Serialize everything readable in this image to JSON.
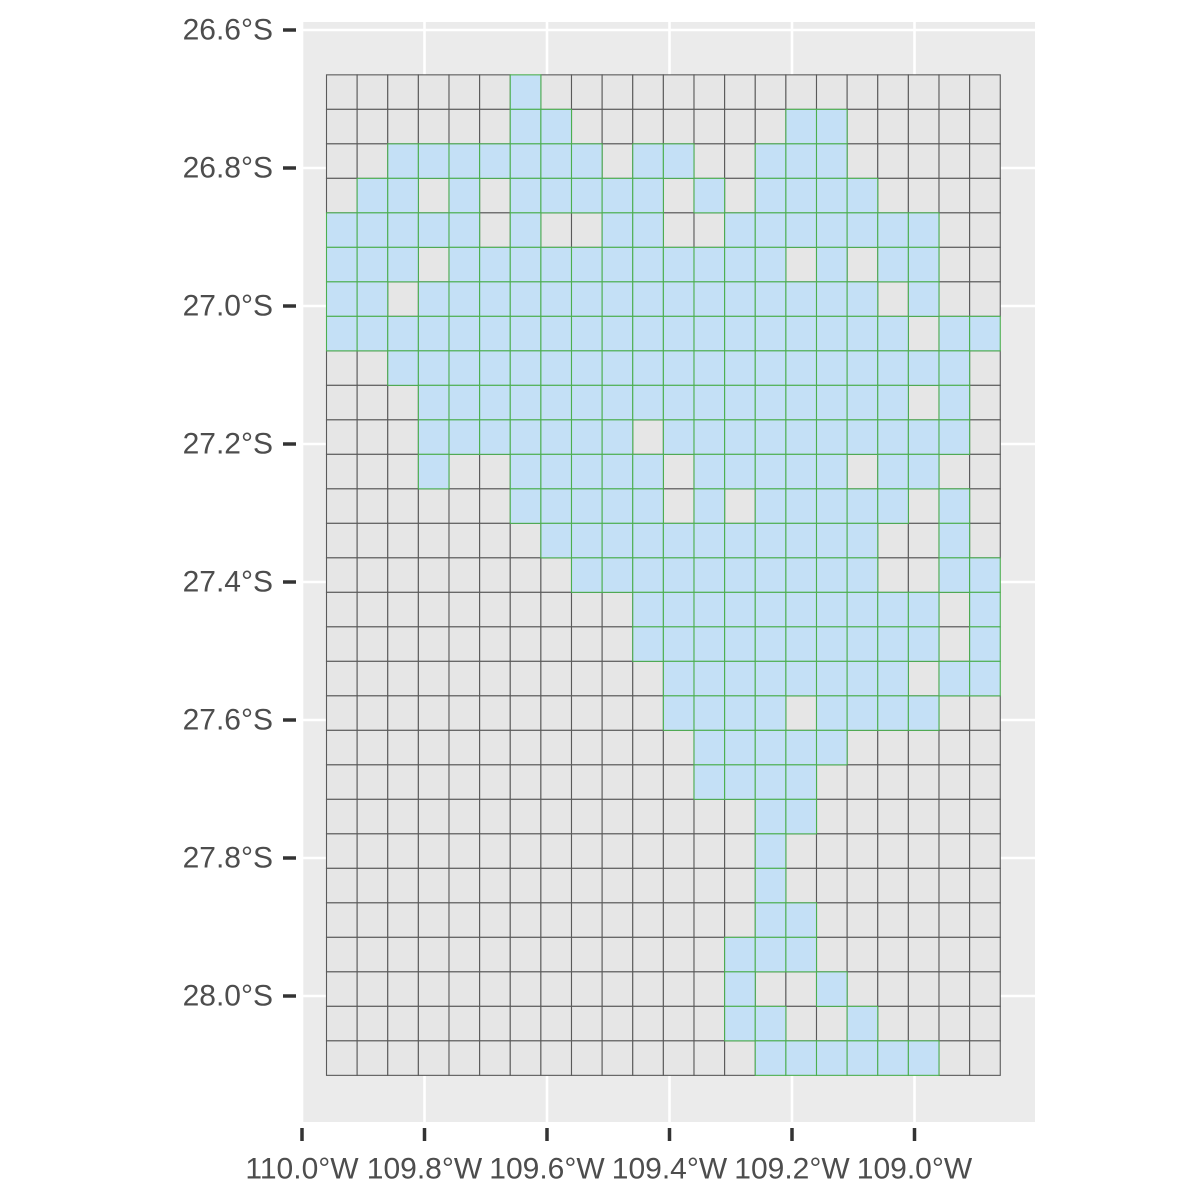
{
  "map": {
    "panel_color": "#ebebeb",
    "major_grid_color": "#ffffff",
    "cell_outline_color": "#5a5a5a",
    "cell_fill_color": "#e6e6e6",
    "land_fill_color": "#c4e0f6",
    "land_outline_color": "#4caf50",
    "x_axis": {
      "ticks": [
        -110.0,
        -109.8,
        -109.6,
        -109.4,
        -109.2,
        -109.0
      ],
      "tick_labels": [
        "110.0°W",
        "109.8°W",
        "109.6°W",
        "109.4°W",
        "109.2°W",
        "109.0°W"
      ]
    },
    "y_axis": {
      "ticks": [
        -26.6,
        -26.8,
        -27.0,
        -27.2,
        -27.4,
        -27.6,
        -27.8,
        -28.0
      ],
      "tick_labels": [
        "26.6°S",
        "26.8°S",
        "27.0°S",
        "27.2°S",
        "27.4°S",
        "27.6°S",
        "27.8°S",
        "28.0°S"
      ]
    },
    "grid": {
      "columns": 22,
      "rows": 29,
      "cells_per_degree_lon": 20.0,
      "cells_per_degree_lat": 20.0,
      "lon_min": -109.96,
      "lat_max": -26.665,
      "filled_rows": [
        "......#...............",
        "......##.......##.....",
        "..#######.##..###.....",
        ".##.#.#####.#.####....",
        "#####.#..##..#######..",
        "###.###########.#.##..",
        "##.###############.#..",
        "###################.##",
        "..###################.",
        "...################.#.",
        "...#######.##########.",
        "...#..#####.#####.##..",
        "......#####.#.#####.#.",
        ".......###########..#.",
        "........##########..##",
        "..........##########.#",
        "..........##########.#",
        "...........########.##",
        "...........####.####..",
        "............#####.....",
        "............####......",
        "..............##......",
        "..............#.......",
        "..............#.......",
        "..............##......",
        ".............###......",
        ".............#..#.....",
        ".............##..#....",
        "..............######.."
      ]
    }
  }
}
